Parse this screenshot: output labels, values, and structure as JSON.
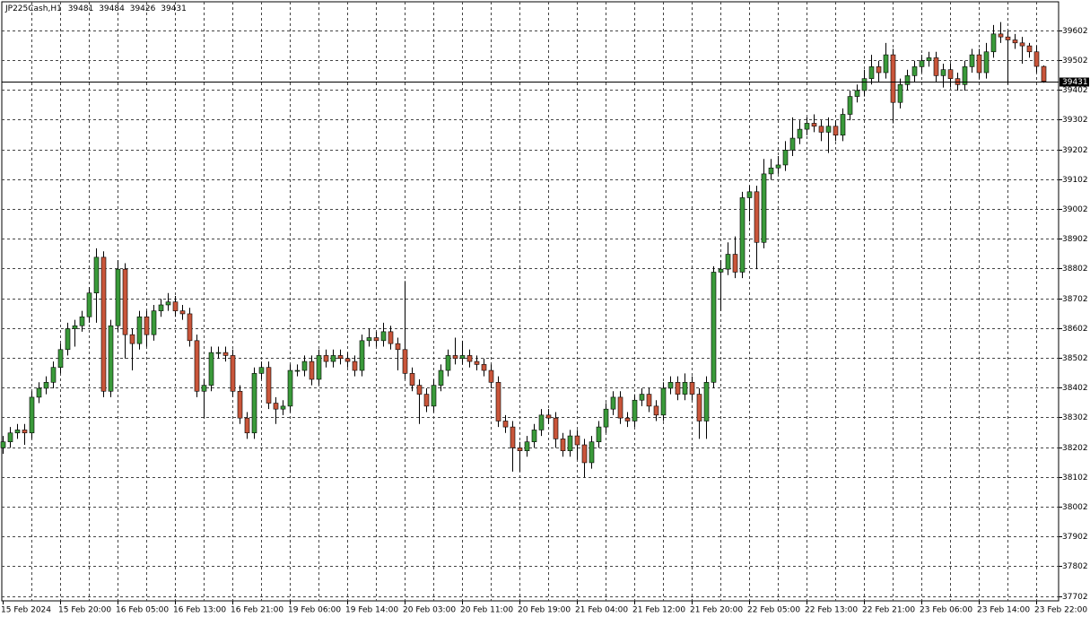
{
  "chart_data": {
    "type": "candlestick",
    "symbol": "JP225Cash,H1",
    "categories": [
      "15 Feb 2024",
      null,
      null,
      null,
      null,
      null,
      null,
      null,
      "15 Feb 20:00",
      null,
      null,
      null,
      null,
      null,
      null,
      null,
      "16 Feb 05:00",
      null,
      null,
      null,
      null,
      null,
      null,
      null,
      "16 Feb 13:00",
      null,
      null,
      null,
      null,
      null,
      null,
      null,
      "16 Feb 21:00",
      null,
      null,
      null,
      null,
      null,
      null,
      null,
      "19 Feb 06:00",
      null,
      null,
      null,
      null,
      null,
      null,
      null,
      "19 Feb 14:00",
      null,
      null,
      null,
      null,
      null,
      null,
      null,
      "20 Feb 03:00",
      null,
      null,
      null,
      null,
      null,
      null,
      null,
      "20 Feb 11:00",
      null,
      null,
      null,
      null,
      null,
      null,
      null,
      "20 Feb 19:00",
      null,
      null,
      null,
      null,
      null,
      null,
      null,
      "21 Feb 04:00",
      null,
      null,
      null,
      null,
      null,
      null,
      null,
      "21 Feb 12:00",
      null,
      null,
      null,
      null,
      null,
      null,
      null,
      "21 Feb 20:00",
      null,
      null,
      null,
      null,
      null,
      null,
      null,
      "22 Feb 05:00",
      null,
      null,
      null,
      null,
      null,
      null,
      null,
      "22 Feb 13:00",
      null,
      null,
      null,
      null,
      null,
      null,
      null,
      "22 Feb 21:00",
      null,
      null,
      null,
      null,
      null,
      null,
      null,
      "23 Feb 06:00",
      null,
      null,
      null,
      null,
      null,
      null,
      null,
      "23 Feb 14:00",
      null,
      null,
      null,
      null,
      null,
      null,
      null,
      "23 Feb 22:00",
      null
    ],
    "open": [
      38200,
      38220,
      38250,
      38260,
      38250,
      38370,
      38400,
      38420,
      38470,
      38530,
      38600,
      38610,
      38640,
      38720,
      38840,
      38390,
      38610,
      38800,
      38580,
      38550,
      38640,
      38580,
      38660,
      38680,
      38690,
      38660,
      38650,
      38560,
      38390,
      38410,
      38520,
      38520,
      38510,
      38390,
      38300,
      38250,
      38450,
      38470,
      38350,
      38330,
      38340,
      38460,
      38460,
      38490,
      38430,
      38510,
      38490,
      38510,
      38500,
      38490,
      38460,
      38560,
      38570,
      38560,
      38590,
      38550,
      38530,
      38450,
      38410,
      38380,
      38340,
      38410,
      38460,
      38510,
      38500,
      38510,
      38490,
      38480,
      38460,
      38420,
      38290,
      38270,
      38200,
      38190,
      38220,
      38260,
      38310,
      38300,
      38230,
      38190,
      38240,
      38210,
      38150,
      38220,
      38270,
      38330,
      38370,
      38300,
      38290,
      38360,
      38380,
      38340,
      38310,
      38400,
      38420,
      38380,
      38420,
      38380,
      38290,
      38420,
      38790,
      38800,
      38850,
      38790,
      39040,
      39060,
      38890,
      39120,
      39140,
      39150,
      39200,
      39240,
      39270,
      39290,
      39280,
      39260,
      39280,
      39250,
      39320,
      39380,
      39400,
      39440,
      39480,
      39460,
      39520,
      39360,
      39420,
      39450,
      39480,
      39500,
      39510,
      39450,
      39470,
      39440,
      39420,
      39480,
      39520,
      39460,
      39530,
      39590,
      39580,
      39570,
      39560,
      39550,
      39530,
      39481
    ],
    "high": [
      38240,
      38270,
      38280,
      38280,
      38390,
      38420,
      38440,
      38490,
      38550,
      38620,
      38630,
      38660,
      38740,
      38870,
      38860,
      38630,
      38830,
      38820,
      38600,
      38660,
      38660,
      38680,
      38700,
      38720,
      38710,
      38680,
      38670,
      38580,
      38430,
      38540,
      38540,
      38540,
      38530,
      38410,
      38320,
      38470,
      38490,
      38490,
      38370,
      38360,
      38480,
      38480,
      38510,
      38510,
      38530,
      38530,
      38530,
      38530,
      38520,
      38510,
      38580,
      38600,
      38590,
      38620,
      38610,
      38570,
      38760,
      38470,
      38430,
      38400,
      38430,
      38480,
      38530,
      38570,
      38560,
      38530,
      38510,
      38500,
      38480,
      38440,
      38310,
      38290,
      38220,
      38240,
      38280,
      38330,
      38330,
      38320,
      38250,
      38260,
      38260,
      38230,
      38240,
      38290,
      38350,
      38390,
      38390,
      38320,
      38380,
      38400,
      38400,
      38360,
      38420,
      38440,
      38440,
      38450,
      38440,
      38400,
      38440,
      38810,
      38830,
      38890,
      38910,
      39060,
      39080,
      39080,
      39170,
      39170,
      39180,
      39230,
      39310,
      39300,
      39310,
      39320,
      39300,
      39310,
      39300,
      39340,
      39400,
      39420,
      39470,
      39520,
      39500,
      39560,
      39540,
      39440,
      39470,
      39500,
      39520,
      39530,
      39530,
      39490,
      39490,
      39460,
      39500,
      39540,
      39540,
      39560,
      39620,
      39630,
      39600,
      39590,
      39580,
      39560,
      39550,
      39484
    ],
    "low": [
      38180,
      38200,
      38230,
      38210,
      38230,
      38350,
      38380,
      38400,
      38450,
      38510,
      38540,
      38590,
      38620,
      38620,
      38370,
      38370,
      38590,
      38500,
      38460,
      38530,
      38540,
      38560,
      38640,
      38660,
      38640,
      38630,
      38540,
      38370,
      38300,
      38390,
      38500,
      38490,
      38370,
      38280,
      38230,
      38230,
      38430,
      38330,
      38280,
      38310,
      38320,
      38440,
      38440,
      38410,
      38410,
      38470,
      38470,
      38480,
      38470,
      38440,
      38440,
      38540,
      38540,
      38540,
      38530,
      38460,
      38430,
      38390,
      38280,
      38320,
      38320,
      38390,
      38440,
      38480,
      38480,
      38470,
      38460,
      38440,
      38400,
      38270,
      38250,
      38120,
      38120,
      38170,
      38200,
      38240,
      38280,
      38200,
      38170,
      38170,
      38160,
      38100,
      38130,
      38200,
      38250,
      38310,
      38280,
      38270,
      38270,
      38340,
      38320,
      38290,
      38290,
      38380,
      38360,
      38360,
      38360,
      38230,
      38230,
      38400,
      38660,
      38780,
      38770,
      38770,
      38960,
      38800,
      38870,
      39100,
      39120,
      39130,
      39180,
      39220,
      39250,
      39260,
      39230,
      39190,
      39230,
      39230,
      39300,
      39360,
      39380,
      39420,
      39430,
      39440,
      39290,
      39340,
      39400,
      39430,
      39460,
      39480,
      39430,
      39410,
      39410,
      39400,
      39400,
      39460,
      39440,
      39440,
      39510,
      39560,
      39420,
      39540,
      39490,
      39510,
      39460,
      39426
    ],
    "close": [
      38220,
      38250,
      38260,
      38250,
      38370,
      38400,
      38420,
      38470,
      38530,
      38600,
      38610,
      38640,
      38720,
      38840,
      38390,
      38610,
      38800,
      38580,
      38550,
      38640,
      38580,
      38660,
      38680,
      38690,
      38660,
      38650,
      38560,
      38390,
      38410,
      38520,
      38520,
      38510,
      38390,
      38300,
      38250,
      38450,
      38470,
      38350,
      38330,
      38340,
      38460,
      38460,
      38490,
      38430,
      38510,
      38490,
      38510,
      38500,
      38490,
      38460,
      38560,
      38570,
      38560,
      38590,
      38550,
      38530,
      38450,
      38410,
      38380,
      38340,
      38410,
      38460,
      38510,
      38500,
      38510,
      38490,
      38480,
      38460,
      38420,
      38290,
      38270,
      38200,
      38190,
      38220,
      38260,
      38310,
      38300,
      38230,
      38190,
      38240,
      38210,
      38150,
      38220,
      38270,
      38330,
      38370,
      38300,
      38290,
      38360,
      38380,
      38340,
      38310,
      38400,
      38420,
      38380,
      38420,
      38380,
      38290,
      38420,
      38790,
      38800,
      38850,
      38790,
      39040,
      39060,
      38890,
      39120,
      39140,
      39150,
      39200,
      39240,
      39270,
      39290,
      39280,
      39260,
      39280,
      39250,
      39320,
      39380,
      39400,
      39440,
      39480,
      39460,
      39520,
      39360,
      39420,
      39450,
      39480,
      39500,
      39510,
      39450,
      39470,
      39440,
      39420,
      39480,
      39520,
      39460,
      39530,
      39590,
      39580,
      39570,
      39560,
      39550,
      39530,
      39481,
      39431
    ],
    "up_color": "#3a9a3a",
    "down_color": "#c9553a",
    "ylim": [
      37686,
      39698
    ],
    "yticks": [
      39602,
      39502,
      39402,
      39302,
      39202,
      39102,
      39002,
      38902,
      38802,
      38702,
      38602,
      38502,
      38402,
      38302,
      38202,
      38102,
      38002,
      37902,
      37802,
      37702
    ],
    "grid": true
  }
}
